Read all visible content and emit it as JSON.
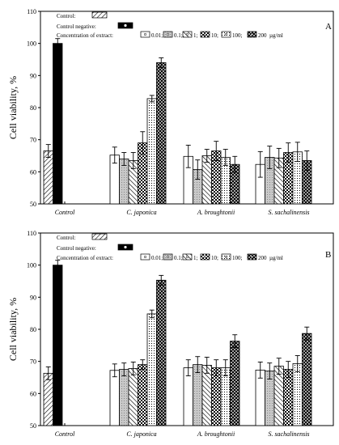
{
  "chart_data": [
    {
      "type": "bar",
      "panel": "A",
      "ylabel": "Cell viability, %",
      "ylim": [
        50,
        110
      ],
      "yticks": [
        50,
        60,
        70,
        80,
        90,
        100,
        110
      ],
      "categories": [
        "Control",
        "C. japonica",
        "A. broughtonii",
        "S. sachalinensis"
      ],
      "legend": {
        "control_label": "Control:",
        "control_negative_label": "Control negative:",
        "concentration_label": "Concentration of extract:",
        "concentration_unit": "µg/ml",
        "concentrations": [
          "0.01;",
          "0.1;",
          "1;",
          "10;",
          "100;",
          "200"
        ]
      },
      "control": {
        "value": 66.5,
        "err": 2
      },
      "control_negative": {
        "value": 100,
        "err": 1.5
      },
      "series": [
        {
          "name": "0.01",
          "values": [
            null,
            65.2,
            64.8,
            62.3
          ],
          "err": [
            null,
            2.5,
            3.5,
            4.0
          ]
        },
        {
          "name": "0.1",
          "values": [
            null,
            64.0,
            60.7,
            64.5
          ],
          "err": [
            null,
            2.0,
            3.0,
            3.5
          ]
        },
        {
          "name": "1",
          "values": [
            null,
            63.5,
            65.0,
            64.3
          ],
          "err": [
            null,
            2.5,
            2.0,
            3.0
          ]
        },
        {
          "name": "10",
          "values": [
            null,
            69.0,
            66.5,
            66.0
          ],
          "err": [
            null,
            3.5,
            3.0,
            3.0
          ]
        },
        {
          "name": "100",
          "values": [
            null,
            82.8,
            64.5,
            66.2
          ],
          "err": [
            null,
            1.0,
            2.5,
            3.0
          ]
        },
        {
          "name": "200",
          "values": [
            null,
            94.0,
            62.3,
            63.5
          ],
          "err": [
            null,
            1.5,
            2.5,
            3.0
          ]
        }
      ]
    },
    {
      "type": "bar",
      "panel": "B",
      "ylabel": "Cell viability, %",
      "ylim": [
        50,
        110
      ],
      "yticks": [
        50,
        60,
        70,
        80,
        90,
        100,
        110
      ],
      "categories": [
        "Control",
        "C. japonica",
        "A. broughtonii",
        "S. sachalinensis"
      ],
      "legend": {
        "control_label": "Control:",
        "control_negative_label": "Control negative:",
        "concentration_label": "Concentration of extract:",
        "concentration_unit": "µg/ml",
        "concentrations": [
          "0.01;",
          "0.1;",
          "1;",
          "10;",
          "100;",
          "200"
        ]
      },
      "control": {
        "value": 66.3,
        "err": 2
      },
      "control_negative": {
        "value": 100,
        "err": 1.5
      },
      "series": [
        {
          "name": "0.01",
          "values": [
            null,
            67.2,
            68.0,
            67.3
          ],
          "err": [
            null,
            2.0,
            2.5,
            2.5
          ]
        },
        {
          "name": "0.1",
          "values": [
            null,
            67.5,
            69.0,
            67.0
          ],
          "err": [
            null,
            2.0,
            2.5,
            2.5
          ]
        },
        {
          "name": "1",
          "values": [
            null,
            67.8,
            68.8,
            68.5
          ],
          "err": [
            null,
            2.0,
            2.5,
            2.5
          ]
        },
        {
          "name": "10",
          "values": [
            null,
            69.0,
            68.0,
            67.5
          ],
          "err": [
            null,
            1.5,
            2.5,
            2.5
          ]
        },
        {
          "name": "100",
          "values": [
            null,
            84.8,
            68.0,
            69.3
          ],
          "err": [
            null,
            1.2,
            2.5,
            2.5
          ]
        },
        {
          "name": "200",
          "values": [
            null,
            95.3,
            76.3,
            78.7
          ],
          "err": [
            null,
            1.5,
            2.0,
            2.0
          ]
        }
      ]
    }
  ]
}
